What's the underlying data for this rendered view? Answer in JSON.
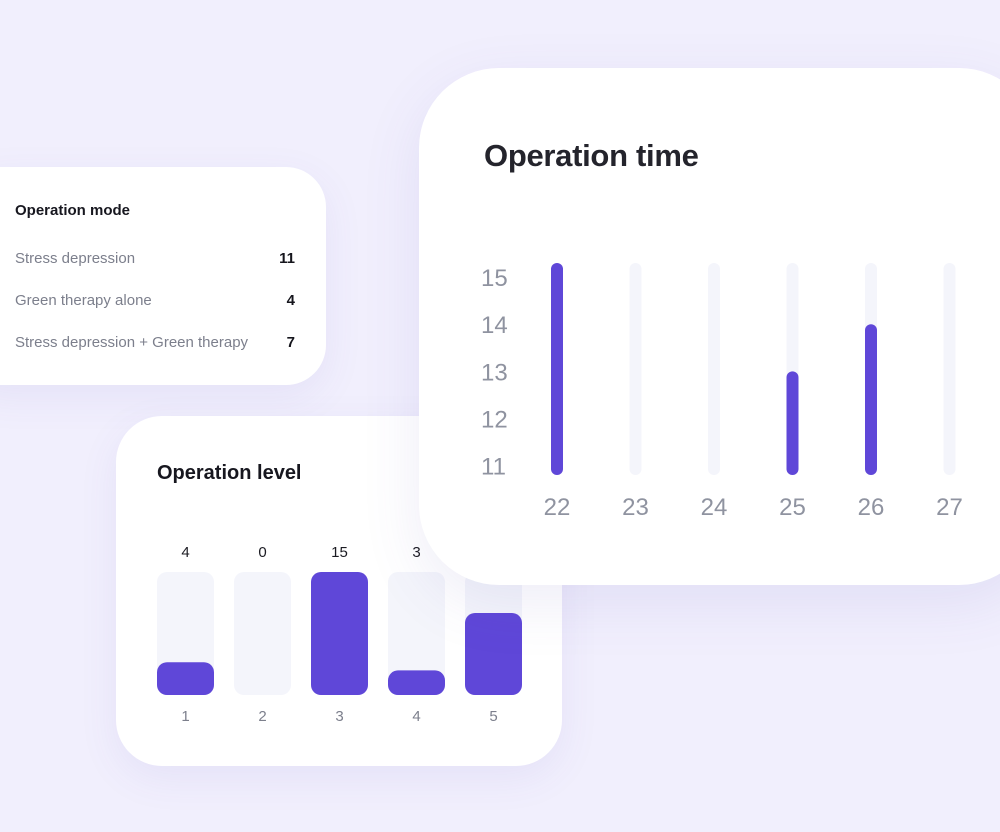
{
  "operation_mode": {
    "title": "Operation mode",
    "rows": [
      {
        "label": "Stress depression",
        "value": "11"
      },
      {
        "label": "Green therapy alone",
        "value": "4"
      },
      {
        "label": "Stress depression + Green therapy",
        "value": "7"
      }
    ]
  },
  "operation_level": {
    "title": "Operation level"
  },
  "operation_time": {
    "title": "Operation time"
  },
  "colors": {
    "accent": "#5f47d8",
    "track": "#f4f5fb",
    "background": "#f1effd"
  },
  "chart_data": [
    {
      "type": "bar",
      "title": "Operation level",
      "categories": [
        "1",
        "2",
        "3",
        "4",
        "5"
      ],
      "values": [
        4,
        0,
        15,
        3,
        10
      ],
      "value_labels": [
        "4",
        "0",
        "15",
        "3",
        ""
      ],
      "ylim": [
        0,
        15
      ]
    },
    {
      "type": "bar",
      "title": "Operation time",
      "categories": [
        "22",
        "23",
        "24",
        "25",
        "26",
        "27"
      ],
      "values": [
        15.3,
        null,
        null,
        13,
        14,
        null
      ],
      "y_ticks": [
        "15",
        "14",
        "13",
        "12",
        "11"
      ],
      "ylim": [
        10.8,
        15.3
      ]
    }
  ]
}
